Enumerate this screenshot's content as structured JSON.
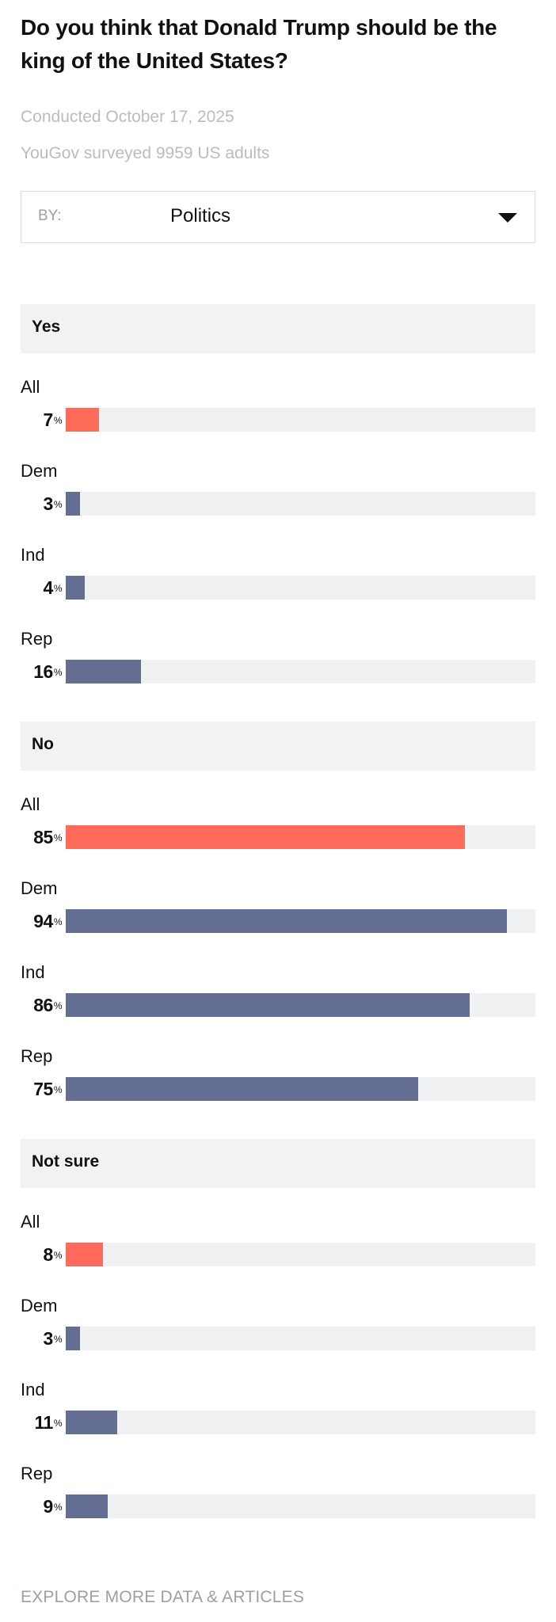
{
  "title": "Do you think that Donald Trump should be the king of the United States?",
  "conducted": "Conducted October 17, 2025",
  "sample": "YouGov surveyed 9959 US adults",
  "by_select": {
    "label": "BY:",
    "value": "Politics"
  },
  "pct_symbol": "%",
  "colors": {
    "all": "#ff6b5b",
    "group": "#636e92",
    "track": "#f0f1f3",
    "header": "#f1f2f4"
  },
  "chart_data": {
    "type": "bar",
    "orientation": "horizontal",
    "title": "Do you think that Donald Trump should be the king of the United States?",
    "xlim": [
      0,
      100
    ],
    "unit": "%",
    "categories": [
      "All",
      "Dem",
      "Ind",
      "Rep"
    ],
    "series": [
      {
        "name": "Yes",
        "values": [
          7,
          3,
          4,
          16
        ]
      },
      {
        "name": "No",
        "values": [
          85,
          94,
          86,
          75
        ]
      },
      {
        "name": "Not sure",
        "values": [
          8,
          3,
          11,
          9
        ]
      }
    ]
  },
  "footer": {
    "link": "EXPLORE MORE DATA & ARTICLES"
  }
}
